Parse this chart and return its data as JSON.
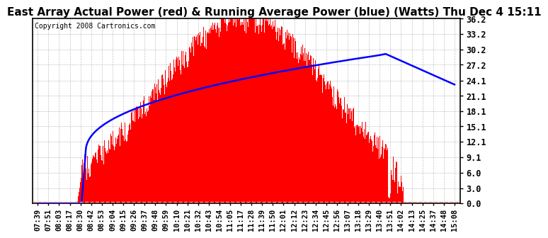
{
  "title": "East Array Actual Power (red) & Running Average Power (blue) (Watts) Thu Dec 4 15:11",
  "copyright": "Copyright 2008 Cartronics.com",
  "yticks": [
    0.0,
    3.0,
    6.0,
    9.1,
    12.1,
    15.1,
    18.1,
    21.1,
    24.1,
    27.2,
    30.2,
    33.2,
    36.2
  ],
  "ymin": 0.0,
  "ymax": 36.2,
  "xtick_labels": [
    "07:39",
    "07:51",
    "08:03",
    "08:17",
    "08:30",
    "08:42",
    "08:53",
    "09:04",
    "09:15",
    "09:26",
    "09:37",
    "09:48",
    "09:59",
    "10:10",
    "10:21",
    "10:32",
    "10:43",
    "10:54",
    "11:05",
    "11:17",
    "11:28",
    "11:39",
    "11:50",
    "12:01",
    "12:12",
    "12:23",
    "12:34",
    "12:45",
    "12:56",
    "13:07",
    "13:18",
    "13:29",
    "13:40",
    "13:51",
    "14:02",
    "14:13",
    "14:25",
    "14:37",
    "14:48",
    "15:08"
  ],
  "red_color": "#FF0000",
  "blue_color": "#0000FF",
  "dashed_line_color": "#FF9999",
  "background_color": "#FFFFFF",
  "grid_color": "#AAAAAA",
  "title_fontsize": 11,
  "copyright_fontsize": 7,
  "tick_fontsize": 7.5,
  "ytick_fontsize": 8.5
}
